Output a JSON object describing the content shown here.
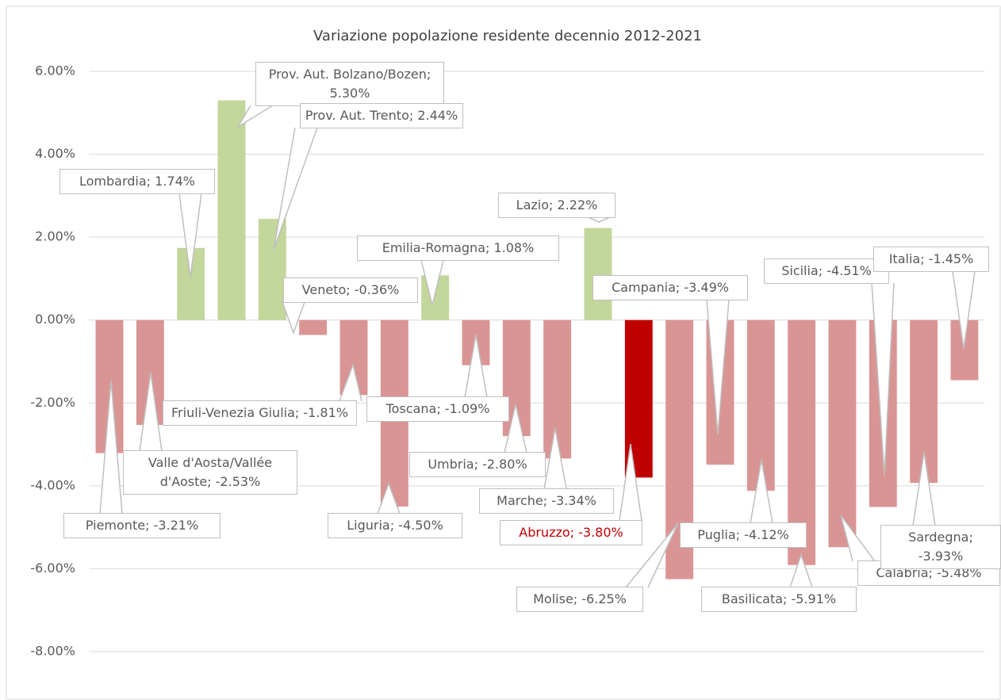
{
  "chart_data": {
    "type": "bar",
    "title": "Variazione popolazione residente decennio 2012-2021",
    "categories": [
      "Piemonte",
      "Valle d'Aosta/Vallée d'Aoste",
      "Lombardia",
      "Prov. Aut. Bolzano/Bozen",
      "Prov. Aut. Trento",
      "Veneto",
      "Friuli-Venezia Giulia",
      "Liguria",
      "Emilia-Romagna",
      "Toscana",
      "Umbria",
      "Marche",
      "Lazio",
      "Abruzzo",
      "Molise",
      "Campania",
      "Puglia",
      "Basilicata",
      "Calabria",
      "Sicilia",
      "Sardegna",
      "Italia"
    ],
    "values": [
      -3.21,
      -2.53,
      1.74,
      5.3,
      2.44,
      -0.36,
      -1.81,
      -4.5,
      1.08,
      -1.09,
      -2.8,
      -3.34,
      2.22,
      -3.8,
      -6.25,
      -3.49,
      -4.12,
      -5.91,
      -5.48,
      -4.51,
      -3.93,
      -1.45
    ],
    "value_labels": [
      "Piemonte; -3.21%",
      "Valle d'Aosta/Vallée d'Aoste; -2.53%",
      "Lombardia; 1.74%",
      "Prov. Aut. Bolzano/Bozen; 5.30%",
      "Prov. Aut. Trento; 2.44%",
      "Veneto; -0.36%",
      "Friuli-Venezia Giulia; -1.81%",
      "Liguria; -4.50%",
      "Emilia-Romagna; 1.08%",
      "Toscana; -1.09%",
      "Umbria; -2.80%",
      "Marche; -3.34%",
      "Lazio; 2.22%",
      "Abruzzo; -3.80%",
      "Molise; -6.25%",
      "Campania; -3.49%",
      "Puglia; -4.12%",
      "Basilicata; -5.91%",
      "Calabria; -5.48%",
      "Sicilia; -4.51%",
      "Sardegna; -3.93%",
      "Italia; -1.45%"
    ],
    "colors": [
      "#d99594",
      "#d99594",
      "#c3d69b",
      "#c3d69b",
      "#c3d69b",
      "#d99594",
      "#d99594",
      "#d99594",
      "#c3d69b",
      "#d99594",
      "#d99594",
      "#d99594",
      "#c3d69b",
      "#c00000",
      "#d99594",
      "#d99594",
      "#d99594",
      "#d99594",
      "#d99594",
      "#d99594",
      "#d99594",
      "#d99594"
    ],
    "value_label_colors": [
      "#595959",
      "#595959",
      "#595959",
      "#595959",
      "#595959",
      "#595959",
      "#595959",
      "#595959",
      "#595959",
      "#595959",
      "#595959",
      "#595959",
      "#595959",
      "#c00000",
      "#595959",
      "#595959",
      "#595959",
      "#595959",
      "#595959",
      "#595959",
      "#595959",
      "#595959"
    ],
    "ylim": [
      -8,
      6
    ],
    "yticks": [
      {
        "value": -8,
        "label": "-8.00%"
      },
      {
        "value": -6,
        "label": "-6.00%"
      },
      {
        "value": -4,
        "label": "-4.00%"
      },
      {
        "value": -2,
        "label": "-2.00%"
      },
      {
        "value": 0,
        "label": "0.00%"
      },
      {
        "value": 2,
        "label": "2.00%"
      },
      {
        "value": 4,
        "label": "4.00%"
      },
      {
        "value": 6,
        "label": "6.00%"
      }
    ],
    "grid": true
  }
}
